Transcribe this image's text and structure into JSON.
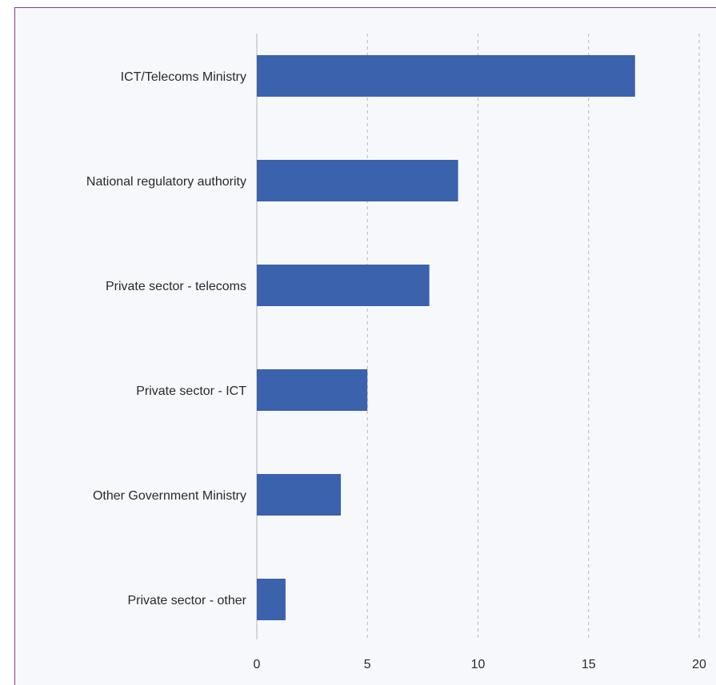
{
  "chart_data": {
    "type": "bar",
    "orientation": "horizontal",
    "categories": [
      "ICT/Telecoms Ministry",
      "National regulatory authority",
      "Private sector - telecoms",
      "Private sector - ICT",
      "Other Government Ministry",
      "Private sector - other"
    ],
    "values": [
      17.1,
      9.1,
      7.8,
      5,
      3.8,
      1.3
    ],
    "xlim": [
      0,
      20
    ],
    "xticks": [
      0,
      5,
      10,
      15,
      20
    ],
    "title": "",
    "xlabel": "",
    "ylabel": "",
    "grid": "vertical dashed",
    "bar_color": "#3a62ad"
  }
}
